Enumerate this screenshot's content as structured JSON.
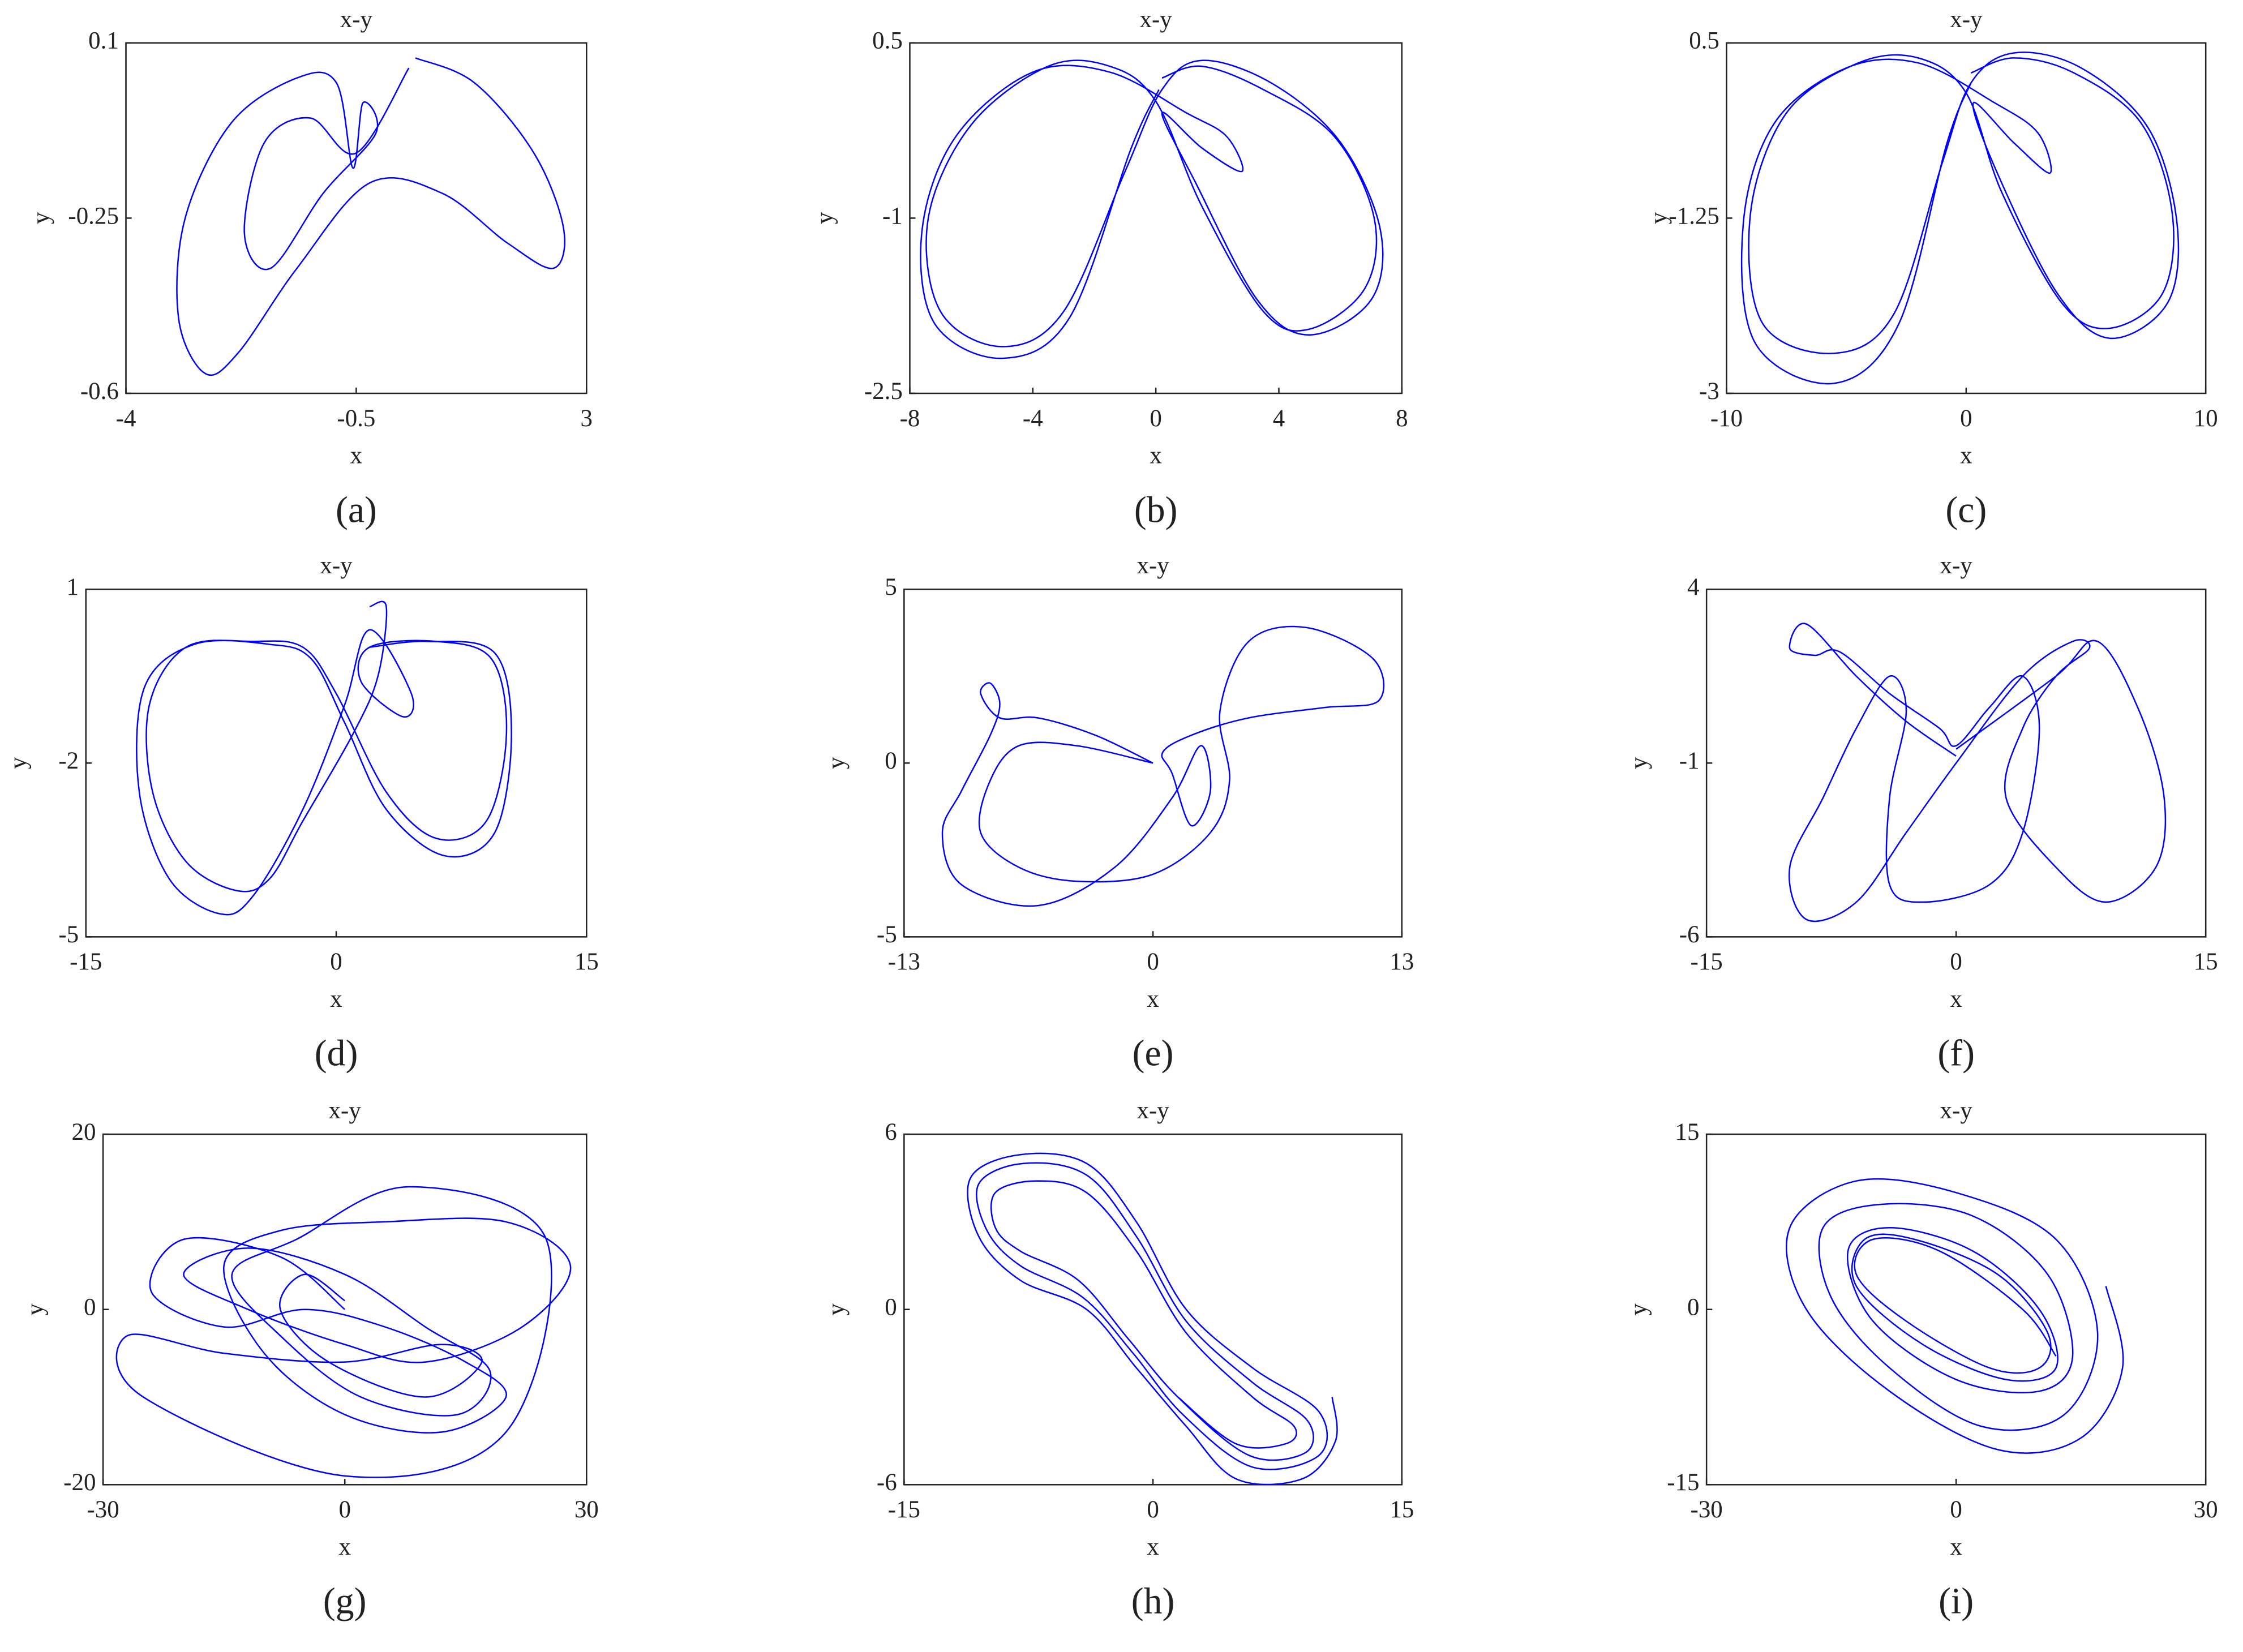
{
  "chart_data": [
    {
      "type": "line",
      "title": "x-y",
      "x_label": "x",
      "y_label": "y",
      "panel_label": "(a)",
      "color": "#0000ff",
      "xlim": [
        -4,
        3
      ],
      "xticks": [
        -4,
        -0.5,
        3
      ],
      "ylim": [
        -0.6,
        0.1
      ],
      "yticks": [
        -0.6,
        -0.25,
        0.1
      ],
      "x": [
        0.4,
        1.3,
        2.2,
        2.65,
        2.5,
        1.8,
        0.8,
        -0.3,
        -1.4,
        -2.3,
        -2.8,
        -3.2,
        -3.1,
        -2.4,
        -1.4,
        -0.8,
        -0.55,
        -0.4,
        -0.2,
        -1.0,
        -1.8,
        -2.2,
        -1.9,
        -1.2,
        -0.5,
        0.3
      ],
      "values": [
        0.07,
        0.02,
        -0.12,
        -0.27,
        -0.35,
        -0.3,
        -0.2,
        -0.18,
        -0.35,
        -0.52,
        -0.56,
        -0.45,
        -0.25,
        -0.06,
        0.03,
        0.02,
        -0.15,
        -0.02,
        -0.08,
        -0.2,
        -0.35,
        -0.28,
        -0.1,
        -0.05,
        -0.12,
        0.05
      ]
    },
    {
      "type": "line",
      "title": "x-y",
      "x_label": "x",
      "y_label": "y",
      "panel_label": "(b)",
      "color": "#0000ff",
      "xlim": [
        -8,
        8
      ],
      "xticks": [
        -8,
        -4,
        0,
        4,
        8
      ],
      "ylim": [
        -2.5,
        0.5
      ],
      "yticks": [
        -2.5,
        -1,
        0.5
      ],
      "x": [
        0.2,
        1.5,
        3.5,
        5.8,
        7.1,
        6.8,
        5,
        3.5,
        1.5,
        0,
        -1.5,
        -3.5,
        -6,
        -7.4,
        -7,
        -5,
        -3,
        -1,
        0.2,
        1.5,
        3.8,
        6,
        7.3,
        7,
        5,
        3.3,
        1.3,
        0.2,
        1.5,
        2.8,
        2.3,
        1,
        -1.5,
        -4,
        -6.5,
        -7.6,
        -7.2,
        -5,
        -2.8,
        -0.8,
        0.1
      ],
      "values": [
        0.2,
        0.3,
        0.1,
        -0.3,
        -1,
        -1.6,
        -1.95,
        -1.8,
        -0.9,
        0,
        0.3,
        0.3,
        -0.2,
        -1,
        -1.8,
        -2.1,
        -1.8,
        -0.6,
        0.1,
        0.35,
        0.15,
        -0.35,
        -1.1,
        -1.7,
        -2,
        -1.7,
        -0.7,
        -0.1,
        -0.4,
        -0.6,
        -0.3,
        -0.1,
        0.25,
        0.25,
        -0.3,
        -1.1,
        -1.9,
        -2.2,
        -1.85,
        -0.4,
        0.1
      ]
    },
    {
      "type": "line",
      "title": "x-y",
      "x_label": "x",
      "y_label": "y",
      "panel_label": "(c)",
      "color": "#0000ff",
      "xlim": [
        -10,
        10
      ],
      "xticks": [
        -10,
        0,
        10
      ],
      "ylim": [
        -3,
        0.5
      ],
      "yticks": [
        -3,
        -1.25,
        0.5
      ],
      "x": [
        0.2,
        2,
        4.5,
        7.3,
        8.6,
        8.2,
        6,
        4,
        1.5,
        0,
        -2,
        -4.5,
        -7.5,
        -9,
        -8.5,
        -5.5,
        -3,
        -1,
        0.2,
        2,
        4.8,
        7.6,
        8.8,
        8.4,
        6,
        3.8,
        1.3,
        0.3,
        2,
        3.5,
        3,
        1.2,
        -2,
        -5,
        -8,
        -9.3,
        -8.8,
        -5.5,
        -2.8,
        -0.8,
        0.2
      ],
      "values": [
        0.2,
        0.35,
        0.2,
        -0.3,
        -1.2,
        -2,
        -2.35,
        -2.1,
        -1,
        0,
        0.35,
        0.3,
        -0.2,
        -1.2,
        -2.3,
        -2.6,
        -2.2,
        -0.7,
        0.1,
        0.4,
        0.25,
        -0.35,
        -1.3,
        -2.1,
        -2.45,
        -2,
        -0.8,
        -0.1,
        -0.5,
        -0.8,
        -0.4,
        -0.1,
        0.3,
        0.25,
        -0.3,
        -1.3,
        -2.5,
        -2.9,
        -2.3,
        -0.5,
        0.1
      ]
    },
    {
      "type": "line",
      "title": "x-y",
      "x_label": "x",
      "y_label": "y",
      "panel_label": "(d)",
      "color": "#0000ff",
      "xlim": [
        -15,
        15
      ],
      "xticks": [
        -15,
        0,
        15
      ],
      "ylim": [
        -5,
        1
      ],
      "yticks": [
        -5,
        -2,
        1
      ],
      "x": [
        2,
        3,
        2.5,
        1,
        -2,
        -4,
        -6,
        -9,
        -11,
        -11.2,
        -9,
        -5,
        -2,
        0,
        3,
        6,
        9,
        10.2,
        9.3,
        6,
        2,
        1.5,
        4,
        4.5,
        2,
        0.5,
        -2,
        -5,
        -7,
        -10,
        -11.8,
        -11.5,
        -8.5,
        -4,
        -1.5,
        0.5,
        3,
        6.5,
        9.5,
        10.5,
        9.5,
        5.5,
        2
      ],
      "values": [
        0.7,
        0.7,
        -0.5,
        -1.5,
        -3,
        -4,
        -4.2,
        -3.7,
        -2.5,
        -1,
        0,
        0.1,
        0,
        -0.8,
        -2.5,
        -3.3,
        -3,
        -1.5,
        -0.2,
        0.1,
        0,
        -0.6,
        -1.2,
        -0.8,
        0.3,
        -1,
        -2.8,
        -4.3,
        -4.6,
        -4,
        -2.5,
        -0.7,
        0.05,
        0.05,
        -0.2,
        -1.3,
        -2.8,
        -3.6,
        -3.2,
        -1.5,
        -0.1,
        0.1,
        0
      ]
    },
    {
      "type": "line",
      "title": "x-y",
      "x_label": "x",
      "y_label": "y",
      "panel_label": "(e)",
      "color": "#0000ff",
      "xlim": [
        -13,
        13
      ],
      "xticks": [
        -13,
        0,
        13
      ],
      "ylim": [
        -5,
        5
      ],
      "yticks": [
        -5,
        0,
        5
      ],
      "x": [
        0,
        -3,
        -6,
        -8,
        -9,
        -8.5,
        -8,
        -8.5,
        -10,
        -11,
        -10,
        -6,
        -2,
        1,
        2.5,
        3,
        2,
        1,
        0.5,
        2,
        5,
        9,
        11.8,
        11.5,
        8,
        5,
        3.5,
        4,
        3,
        0,
        -4,
        -7,
        -9,
        -8.5,
        -7,
        -4,
        0
      ],
      "values": [
        0,
        0.8,
        1.3,
        1.3,
        2,
        2.3,
        1.7,
        0.8,
        -0.8,
        -2,
        -3.5,
        -4.1,
        -3,
        -1,
        0.5,
        -0.8,
        -1.8,
        -0.3,
        0.3,
        0.8,
        1.3,
        1.6,
        1.8,
        3,
        3.9,
        3.5,
        1.5,
        -0.5,
        -2,
        -3.2,
        -3.4,
        -3,
        -2,
        -0.5,
        0.5,
        0.5,
        0
      ]
    },
    {
      "type": "line",
      "title": "x-y",
      "x_label": "x",
      "y_label": "y",
      "panel_label": "(f)",
      "color": "#0000ff",
      "xlim": [
        -15,
        15
      ],
      "xticks": [
        -15,
        0,
        15
      ],
      "ylim": [
        -6,
        4
      ],
      "yticks": [
        -6,
        -1,
        4
      ],
      "x": [
        0,
        -3,
        -6,
        -9,
        -10,
        -8.5,
        -7,
        -4,
        -1,
        0,
        2,
        4,
        5,
        4,
        2,
        -2,
        -4,
        -4,
        -3,
        -4,
        -6,
        -8,
        -10,
        -9,
        -6,
        -3,
        0,
        4,
        7,
        8,
        6,
        4,
        3,
        6,
        9,
        12,
        12.5,
        11,
        8.5,
        6,
        0
      ],
      "values": [
        -0.8,
        0.2,
        1.5,
        3,
        2.3,
        2.1,
        2.2,
        1,
        0,
        -0.5,
        0.6,
        1.5,
        0,
        -3,
        -4.5,
        -5,
        -4.5,
        -2,
        0.5,
        1.5,
        0,
        -2,
        -4,
        -5.5,
        -5,
        -3,
        -1,
        1.5,
        2.5,
        2.3,
        1.5,
        0,
        -2,
        -4,
        -5,
        -4,
        -2,
        0.5,
        2.5,
        1.5,
        -0.6
      ]
    },
    {
      "type": "line",
      "title": "x-y",
      "x_label": "x",
      "y_label": "y",
      "panel_label": "(g)",
      "color": "#0000ff",
      "xlim": [
        -30,
        30
      ],
      "xticks": [
        -30,
        0,
        30
      ],
      "ylim": [
        -20,
        20
      ],
      "yticks": [
        -20,
        0,
        20
      ],
      "x": [
        0,
        -8,
        -20,
        -24,
        -15,
        -5,
        5,
        15,
        20,
        12,
        0,
        -10,
        -15,
        -8,
        5,
        20,
        28,
        22,
        10,
        0,
        -12,
        -20,
        -12,
        0,
        10,
        18,
        14,
        2,
        -8,
        -14,
        -6,
        8,
        25,
        20,
        0,
        -25,
        -27,
        -15,
        0,
        12,
        17,
        10,
        -2,
        -8,
        -5,
        0
      ],
      "values": [
        0,
        6,
        8,
        2,
        -2,
        0,
        -2,
        -6,
        -10,
        -14,
        -12,
        -5,
        5,
        9,
        10,
        10,
        5,
        -2,
        -6,
        -4,
        0,
        4,
        7,
        4,
        -2,
        -7,
        -12,
        -10,
        -3,
        4,
        8,
        14,
        8,
        -14,
        -19,
        -10,
        -3,
        -5,
        -6,
        -4,
        -6,
        -10,
        -6,
        0,
        4,
        1
      ]
    },
    {
      "type": "line",
      "title": "x-y",
      "x_label": "x",
      "y_label": "y",
      "panel_label": "(h)",
      "color": "#0000ff",
      "xlim": [
        -15,
        15
      ],
      "xticks": [
        -15,
        0,
        15
      ],
      "ylim": [
        -6,
        6
      ],
      "yticks": [
        -6,
        0,
        6
      ],
      "x": [
        10.8,
        11,
        9,
        5,
        2,
        -1,
        -4,
        -8,
        -10.5,
        -11,
        -8,
        -4,
        -1,
        2,
        6,
        10,
        10,
        6,
        1.8,
        -1.2,
        -4.2,
        -8,
        -10,
        -10.5,
        -7.8,
        -4,
        -1,
        2,
        6,
        9.3,
        9.2,
        5.8,
        1.5,
        -1.5,
        -4.5,
        -8,
        -9.5,
        -9.5,
        -7,
        -4,
        -1,
        2,
        6,
        8.5,
        8,
        5,
        1.5
      ],
      "values": [
        -3,
        -4.5,
        -5.8,
        -5.8,
        -4,
        -2,
        0,
        1,
        2.5,
        4.5,
        5.3,
        5,
        3,
        0,
        -2,
        -3.5,
        -5,
        -5.4,
        -3.6,
        -1.5,
        0.4,
        1.5,
        2.7,
        4.3,
        5,
        4.6,
        2.5,
        -0.4,
        -2.5,
        -3.8,
        -4.9,
        -5,
        -3,
        -1,
        1,
        2,
        2.8,
        4,
        4.4,
        4,
        2,
        -0.8,
        -3,
        -4,
        -4.6,
        -4.6,
        -3
      ]
    },
    {
      "type": "line",
      "title": "x-y",
      "x_label": "x",
      "y_label": "y",
      "panel_label": "(i)",
      "color": "#0000ff",
      "xlim": [
        -30,
        30
      ],
      "xticks": [
        -30,
        0,
        30
      ],
      "ylim": [
        -15,
        15
      ],
      "yticks": [
        -15,
        0,
        15
      ],
      "x": [
        18,
        20,
        15,
        5,
        -8,
        -18,
        -20,
        -12,
        0,
        12,
        17,
        13,
        3,
        -8,
        -15,
        -16,
        -9,
        2,
        11,
        14,
        10,
        0,
        -10,
        -13,
        -8,
        2,
        10,
        12,
        6,
        -4,
        -12,
        -11,
        -5,
        5,
        11,
        10,
        4,
        -6,
        -12,
        -10,
        -2,
        8,
        12
      ],
      "values": [
        2,
        -5,
        -11,
        -12,
        -7,
        0,
        7,
        11,
        10,
        6,
        -2,
        -9,
        -10,
        -5,
        1,
        7,
        9,
        8,
        3,
        -4,
        -7,
        -6,
        -1,
        5,
        7,
        5,
        0,
        -5,
        -6,
        -3,
        2,
        6,
        6,
        3,
        -2,
        -5,
        -5,
        -1,
        3,
        6,
        5,
        0,
        -4
      ]
    }
  ]
}
